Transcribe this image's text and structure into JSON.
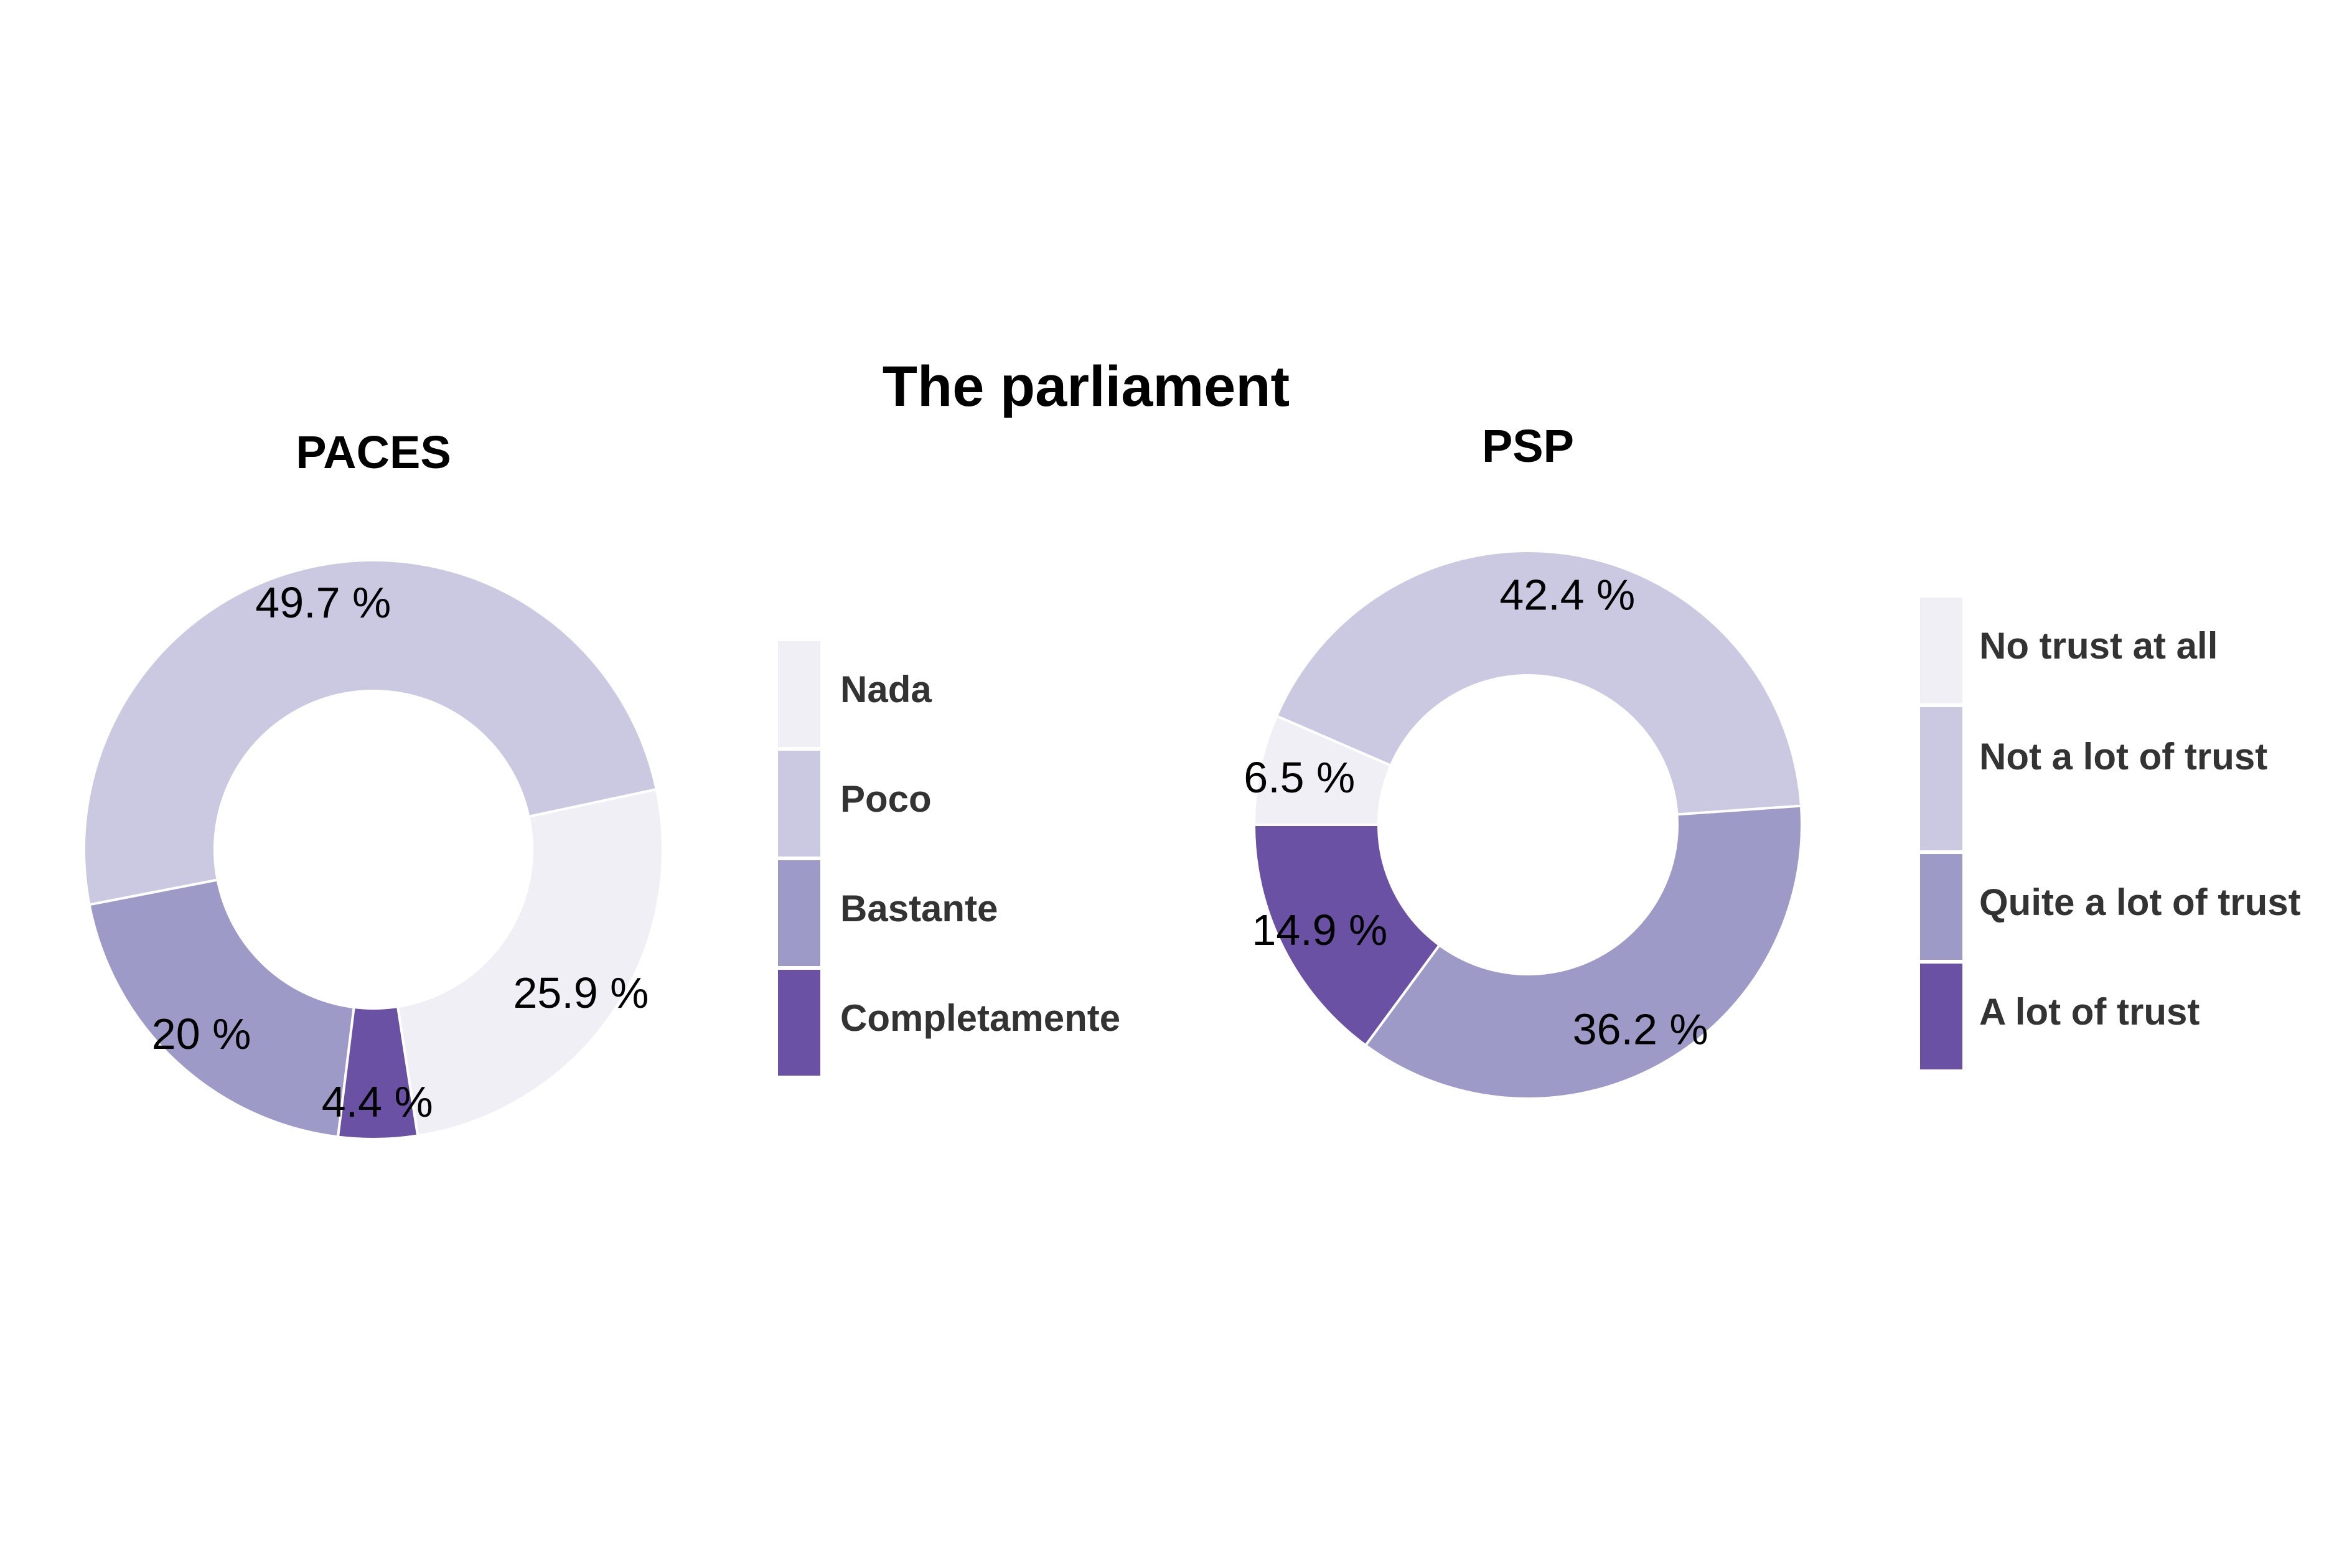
{
  "title": "The parliament",
  "colors": {
    "c1": "#f0eff6",
    "c2": "#cbc9e2",
    "c3": "#9e9ac8",
    "c4": "#6a51a3"
  },
  "chart_data": [
    {
      "type": "pie",
      "title": "PACES",
      "categories": [
        "Nada",
        "Poco",
        "Bastante",
        "Completamente"
      ],
      "values": [
        25.9,
        49.7,
        20,
        4.4
      ],
      "labels": [
        "25.9 %",
        "49.7 %",
        "20 %",
        "4.4 %"
      ],
      "legend": [
        "Nada",
        "Poco",
        "Bastante",
        "Completamente"
      ],
      "legend_position": "right",
      "hole": true
    },
    {
      "type": "pie",
      "title": "PSP",
      "categories": [
        "No trust at all",
        "Not a lot of trust",
        "Quite a lot of trust",
        "A lot of trust"
      ],
      "values": [
        6.5,
        42.4,
        36.2,
        14.9
      ],
      "labels": [
        "6.5 %",
        "42.4 %",
        "36.2 %",
        "14.9 %"
      ],
      "legend": [
        "No trust at all",
        "Not a lot of trust",
        "Quite a lot of trust",
        "A lot of trust"
      ],
      "legend_position": "right",
      "hole": true
    }
  ]
}
